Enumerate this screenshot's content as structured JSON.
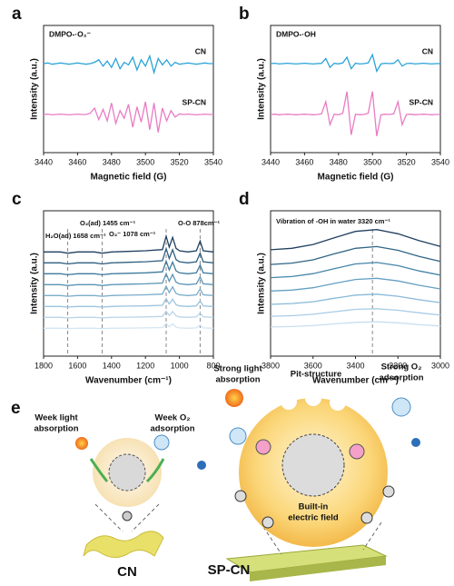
{
  "chart_data": [
    {
      "type": "line",
      "panel_label": "a",
      "title": "DMPO-·O₂⁻",
      "xlabel": "Magnetic field (G)",
      "ylabel": "Intensity (a.u.)",
      "x": [
        3440,
        3442.5,
        3445,
        3447.5,
        3450,
        3452.5,
        3455,
        3457.5,
        3460,
        3462.5,
        3465,
        3467.5,
        3470,
        3472.5,
        3475,
        3477.5,
        3480,
        3482.5,
        3485,
        3487.5,
        3490,
        3492.5,
        3495,
        3497.5,
        3500,
        3502.5,
        3505,
        3507.5,
        3510,
        3512.5,
        3515,
        3517.5,
        3520,
        3522.5,
        3525,
        3527.5,
        3530,
        3532.5,
        3535,
        3537.5,
        3540
      ],
      "xlim": [
        3440,
        3540
      ],
      "xticks": [
        3440,
        3460,
        3480,
        3500,
        3520,
        3540
      ],
      "ylim": [
        0,
        10
      ],
      "series": [
        {
          "name": "CN",
          "color": "#2aa3d8",
          "values": [
            7,
            7.05,
            6.95,
            7,
            7.05,
            7,
            6.95,
            7,
            7.05,
            7,
            6.95,
            7,
            7.1,
            7.3,
            6.8,
            7.2,
            6.7,
            7.4,
            6.6,
            7.1,
            6.9,
            7.5,
            6.5,
            7.3,
            6.8,
            7.6,
            6.3,
            7.4,
            6.9,
            7.3,
            6.8,
            7.1,
            6.95,
            7,
            7.05,
            7,
            6.95,
            7,
            7.05,
            7,
            7
          ]
        },
        {
          "name": "SP-CN",
          "color": "#e87cc3",
          "values": [
            3,
            3.03,
            2.97,
            3,
            3.03,
            3,
            2.97,
            3,
            3.03,
            3,
            3,
            3.1,
            3.5,
            2.6,
            3.4,
            2.5,
            3.9,
            2.3,
            3.3,
            2.7,
            3.8,
            2.0,
            3.6,
            2.4,
            4.0,
            1.8,
            3.9,
            1.6,
            3.5,
            2.5,
            3.3,
            2.8,
            3.05,
            3,
            3.03,
            3,
            2.97,
            3,
            3.03,
            3,
            3
          ]
        }
      ]
    },
    {
      "type": "line",
      "panel_label": "b",
      "title": "DMPO-·OH",
      "xlabel": "Magnetic field (G)",
      "ylabel": "Intensity (a.u.)",
      "x": [
        3440,
        3442.5,
        3445,
        3447.5,
        3450,
        3452.5,
        3455,
        3457.5,
        3460,
        3462.5,
        3465,
        3467.5,
        3470,
        3472.5,
        3475,
        3477.5,
        3480,
        3482.5,
        3485,
        3487.5,
        3490,
        3492.5,
        3495,
        3497.5,
        3500,
        3502.5,
        3505,
        3507.5,
        3510,
        3512.5,
        3515,
        3517.5,
        3520,
        3522.5,
        3525,
        3527.5,
        3530,
        3532.5,
        3535,
        3537.5,
        3540
      ],
      "xlim": [
        3440,
        3540
      ],
      "xticks": [
        3440,
        3460,
        3480,
        3500,
        3520,
        3540
      ],
      "ylim": [
        0,
        10
      ],
      "series": [
        {
          "name": "CN",
          "color": "#2aa3d8",
          "values": [
            7,
            7.03,
            6.97,
            7,
            7.03,
            7,
            6.97,
            7,
            7.03,
            7,
            6.97,
            7,
            7.02,
            7.4,
            6.7,
            7.02,
            6.98,
            7.05,
            7.5,
            6.6,
            7.03,
            6.97,
            7,
            7.05,
            7.7,
            6.4,
            6.97,
            7.03,
            7,
            7.02,
            7.3,
            6.8,
            7,
            7.03,
            6.97,
            7,
            7.03,
            7,
            6.97,
            7,
            7
          ]
        },
        {
          "name": "SP-CN",
          "color": "#e87cc3",
          "values": [
            3,
            3.02,
            2.98,
            3,
            3.02,
            3,
            2.98,
            3,
            3.02,
            3,
            2.98,
            3,
            3.05,
            4.0,
            2.2,
            3.02,
            2.98,
            3.1,
            4.8,
            1.4,
            3.02,
            2.98,
            3,
            3.1,
            4.8,
            1.3,
            2.98,
            3.02,
            3,
            3.05,
            4.0,
            2.2,
            3,
            3.02,
            2.98,
            3,
            3.02,
            3,
            2.98,
            3,
            3
          ]
        }
      ]
    },
    {
      "type": "line",
      "panel_label": "c",
      "xlabel": "Wavenumber (cm⁻¹)",
      "ylabel": "Intensity (a.u.)",
      "x": [
        1800,
        1700,
        1658,
        1600,
        1500,
        1455,
        1400,
        1300,
        1200,
        1100,
        1078,
        1060,
        1040,
        1020,
        1000,
        950,
        900,
        878,
        860,
        800
      ],
      "xlim": [
        1800,
        800
      ],
      "xticks": [
        1800,
        1600,
        1400,
        1200,
        1000,
        800
      ],
      "ylim": [
        0,
        12
      ],
      "annotations": [
        {
          "text": "H₂O(ad) 1658 cm⁻¹",
          "x": 1658
        },
        {
          "text": "O₂(ad) 1455 cm⁻¹",
          "x": 1455
        },
        {
          "text": "O₂⁻ 1078 cm⁻¹",
          "x": 1078
        },
        {
          "text": "O-O 878cm⁻¹",
          "x": 878
        }
      ],
      "series": [
        {
          "color": "#1f3f5f",
          "values": [
            8.6,
            8.6,
            8.5,
            8.6,
            8.6,
            8.5,
            8.6,
            8.65,
            8.7,
            8.8,
            9.9,
            9.0,
            9.8,
            8.9,
            8.7,
            8.6,
            8.7,
            9.5,
            8.7,
            8.6
          ]
        },
        {
          "color": "#2f5f80",
          "values": [
            7.7,
            7.7,
            7.61,
            7.7,
            7.7,
            7.61,
            7.7,
            7.75,
            7.79,
            7.88,
            8.87,
            8.06,
            8.78,
            7.97,
            7.79,
            7.7,
            7.79,
            8.51,
            7.79,
            7.7
          ]
        },
        {
          "color": "#3f7a9c",
          "values": [
            6.8,
            6.8,
            6.72,
            6.8,
            6.8,
            6.72,
            6.8,
            6.84,
            6.88,
            6.96,
            7.84,
            7.12,
            7.76,
            7.04,
            6.88,
            6.8,
            6.88,
            7.52,
            6.88,
            6.8
          ]
        },
        {
          "color": "#5a94b5",
          "values": [
            5.9,
            5.9,
            5.83,
            5.9,
            5.9,
            5.83,
            5.9,
            5.94,
            5.97,
            6.04,
            6.81,
            6.18,
            6.74,
            6.11,
            5.97,
            5.9,
            5.97,
            6.53,
            5.97,
            5.9
          ]
        },
        {
          "color": "#7aaccb",
          "values": [
            5,
            5,
            4.94,
            5,
            5,
            4.94,
            5,
            5.03,
            5.06,
            5.12,
            5.78,
            5.24,
            5.72,
            5.18,
            5.06,
            5,
            5.06,
            5.54,
            5.06,
            5
          ]
        },
        {
          "color": "#9cc3dd",
          "values": [
            4.1,
            4.1,
            4.05,
            4.1,
            4.1,
            4.05,
            4.1,
            4.13,
            4.15,
            4.2,
            4.75,
            4.3,
            4.7,
            4.25,
            4.15,
            4.1,
            4.15,
            4.55,
            4.15,
            4.1
          ]
        },
        {
          "color": "#b9d5ea",
          "values": [
            3.2,
            3.2,
            3.16,
            3.2,
            3.2,
            3.16,
            3.2,
            3.22,
            3.24,
            3.28,
            3.72,
            3.36,
            3.68,
            3.32,
            3.24,
            3.2,
            3.24,
            3.56,
            3.24,
            3.2
          ]
        },
        {
          "color": "#d3e5f3",
          "values": [
            2.3,
            2.3,
            2.27,
            2.3,
            2.3,
            2.27,
            2.3,
            2.32,
            2.33,
            2.36,
            2.69,
            2.42,
            2.66,
            2.39,
            2.33,
            2.3,
            2.33,
            2.57,
            2.33,
            2.3
          ]
        }
      ]
    },
    {
      "type": "line",
      "panel_label": "d",
      "xlabel": "Wavenumber (cm⁻¹)",
      "ylabel": "Intensity (a.u.)",
      "x": [
        3800,
        3700,
        3600,
        3500,
        3400,
        3300,
        3200,
        3100,
        3000
      ],
      "xlim": [
        3800,
        3000
      ],
      "xticks": [
        3800,
        3600,
        3400,
        3200,
        3000
      ],
      "ylim": [
        0,
        11
      ],
      "annotations": [
        {
          "text": "Vibration of -OH in water 3320 cm⁻¹",
          "x": 3320
        }
      ],
      "series": [
        {
          "color": "#1f3f5f",
          "values": [
            8.05,
            8.16,
            8.45,
            8.96,
            9.44,
            9.58,
            9.26,
            8.74,
            8.3
          ]
        },
        {
          "color": "#2f6585",
          "values": [
            6.94,
            7.04,
            7.29,
            7.74,
            8.16,
            8.29,
            8.01,
            7.54,
            7.17
          ]
        },
        {
          "color": "#4585a8",
          "values": [
            5.94,
            6.02,
            6.24,
            6.62,
            6.98,
            7.09,
            6.85,
            6.45,
            6.13
          ]
        },
        {
          "color": "#64a0c3",
          "values": [
            4.93,
            5.0,
            5.18,
            5.5,
            5.8,
            5.89,
            5.69,
            5.36,
            5.09
          ]
        },
        {
          "color": "#88b9d8",
          "values": [
            3.92,
            3.98,
            4.12,
            4.38,
            4.62,
            4.69,
            4.53,
            4.27,
            4.05
          ]
        },
        {
          "color": "#a9cde6",
          "values": [
            3.02,
            3.06,
            3.17,
            3.36,
            3.54,
            3.59,
            3.47,
            3.28,
            3.11
          ]
        },
        {
          "color": "#c8def0",
          "values": [
            2.21,
            2.24,
            2.31,
            2.44,
            2.56,
            2.6,
            2.52,
            2.38,
            2.28
          ]
        }
      ]
    }
  ],
  "diagram": {
    "panel_label": "e",
    "cn_light": "Week light",
    "cn_light2": "absorption",
    "cn_o2": "Week O₂",
    "cn_o2b": "adsorption",
    "cn_label": "CN",
    "sp_light": "Strong light",
    "sp_light2": "absorption",
    "pit": "Pit-structure",
    "sp_o2": "Strong O₂",
    "sp_o2b": "adsorption",
    "field": "Built-in",
    "field2": "electric field",
    "sp_label": "SP-CN"
  }
}
